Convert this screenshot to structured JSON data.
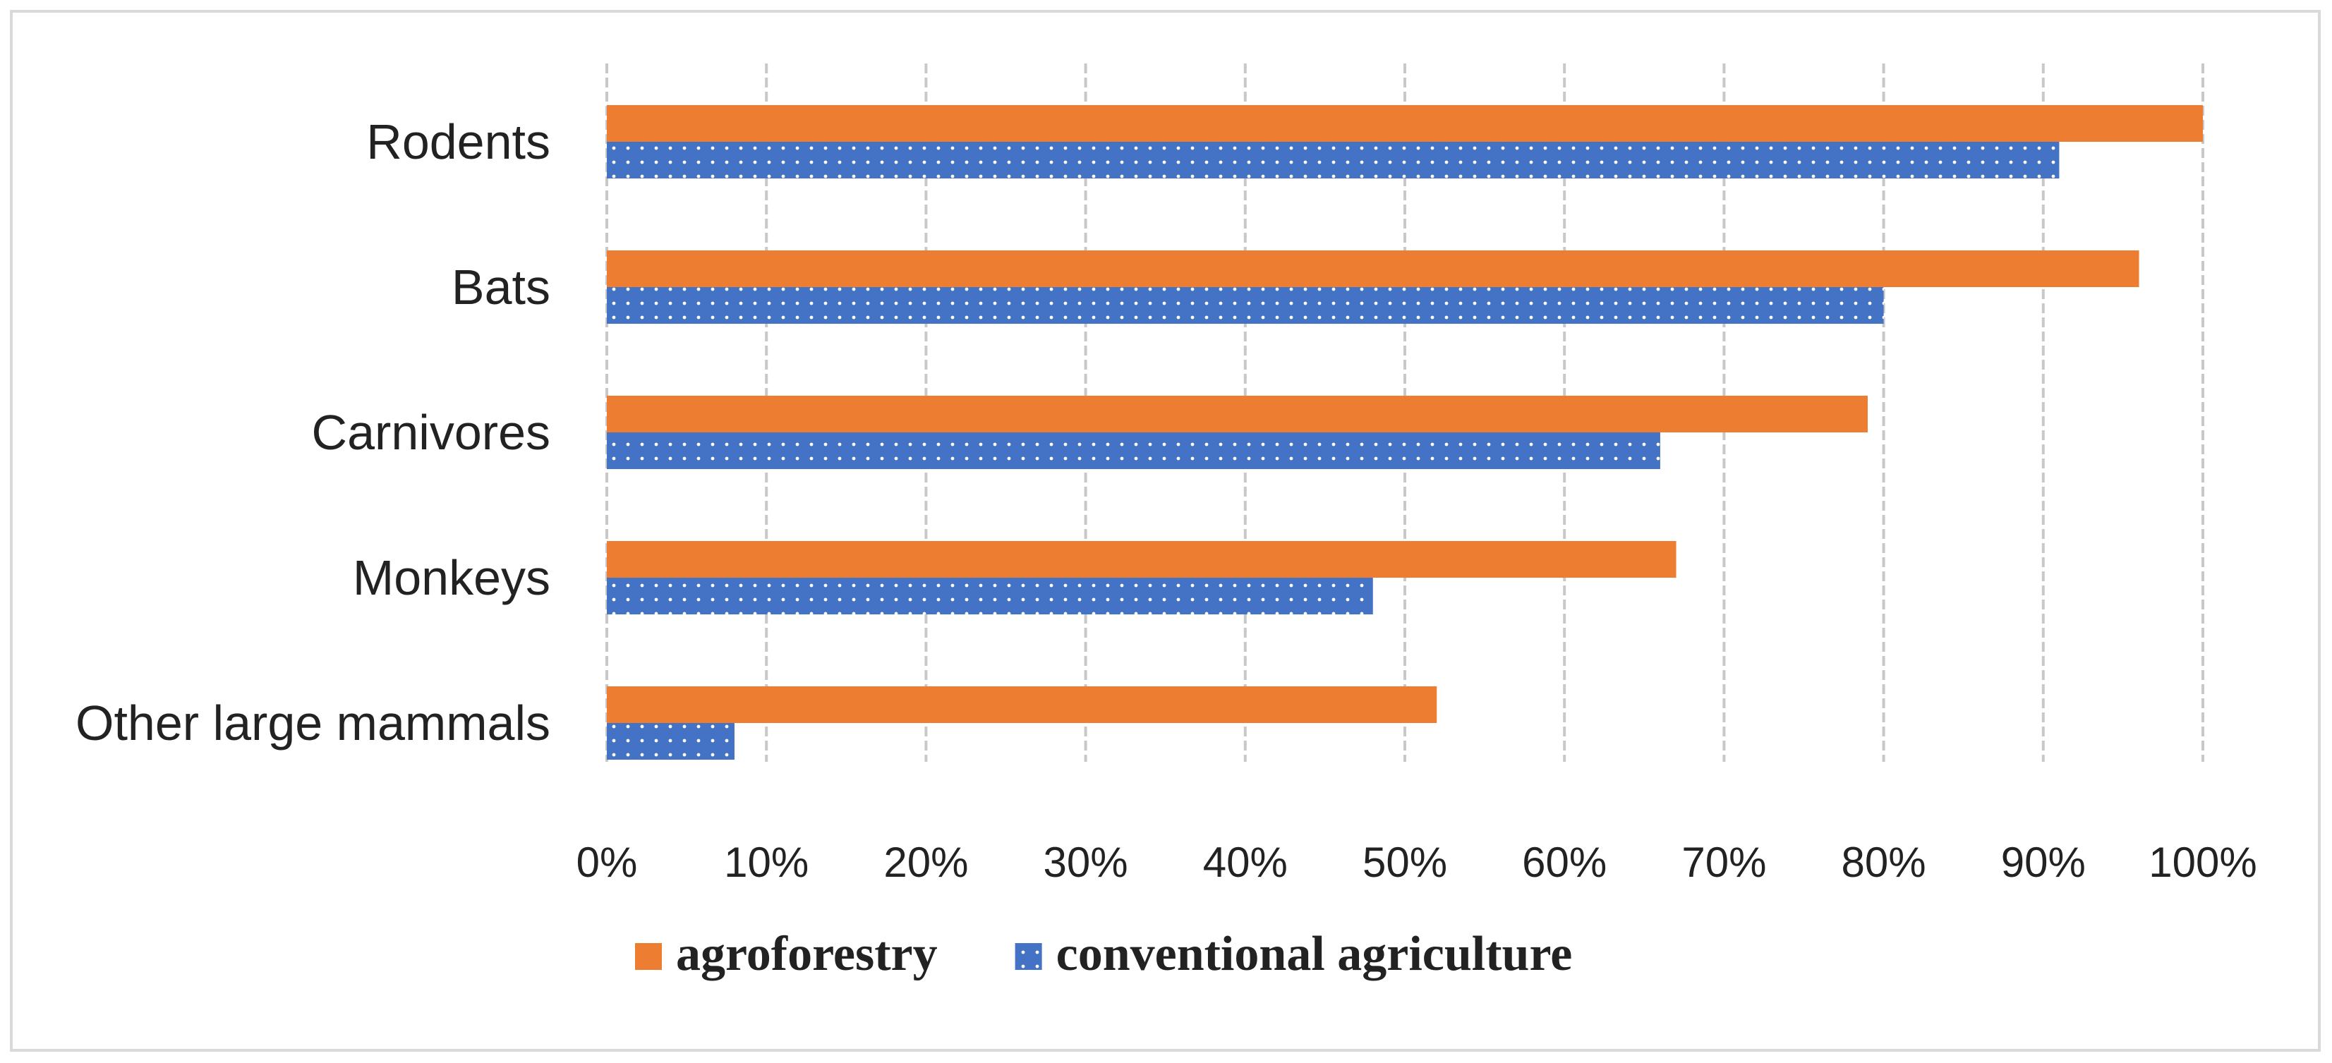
{
  "chart_data": {
    "type": "bar",
    "orientation": "horizontal",
    "title": "",
    "xlabel": "",
    "ylabel": "",
    "categories": [
      "Rodents",
      "Bats",
      "Carnivores",
      "Monkeys",
      "Other large mammals"
    ],
    "series": [
      {
        "name": "agroforestry",
        "color": "#ed7d31",
        "pattern": "solid",
        "values": [
          100,
          96,
          79,
          67,
          52
        ]
      },
      {
        "name": "conventional agriculture",
        "color": "#4472c4",
        "pattern": "dotted",
        "values": [
          91,
          80,
          66,
          48,
          8
        ]
      }
    ],
    "xlim": [
      0,
      100
    ],
    "xticks": [
      "0%",
      "10%",
      "20%",
      "30%",
      "40%",
      "50%",
      "60%",
      "70%",
      "80%",
      "90%",
      "100%"
    ],
    "grid": true,
    "legend_position": "bottom"
  }
}
